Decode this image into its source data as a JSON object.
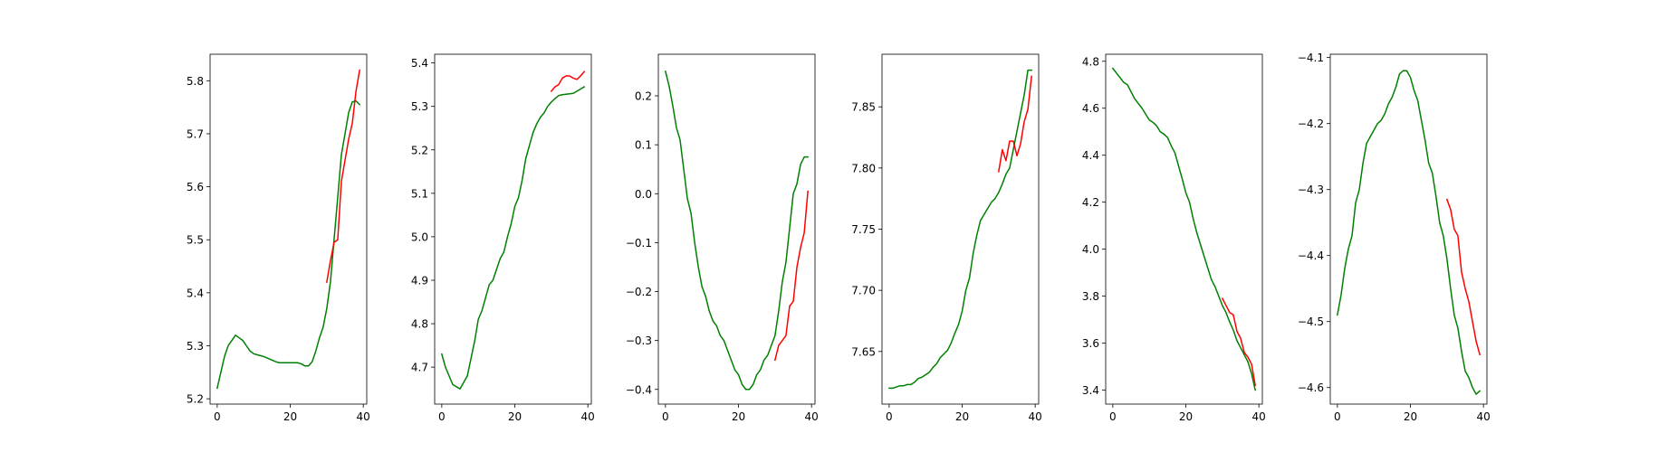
{
  "colors": {
    "green_series": "#008000",
    "red_series": "#ff0000",
    "axes": "#000000",
    "background": "#ffffff"
  },
  "chart_data": [
    {
      "type": "line",
      "xlim": [
        -1.95,
        40.95
      ],
      "ylim": [
        5.19,
        5.85
      ],
      "xticks": [
        0,
        20,
        40
      ],
      "xtick_labels": [
        "0",
        "20",
        "40"
      ],
      "yticks": [
        5.2,
        5.3,
        5.4,
        5.5,
        5.6,
        5.7,
        5.8
      ],
      "ytick_labels": [
        "5.2",
        "5.3",
        "5.4",
        "5.5",
        "5.6",
        "5.7",
        "5.8"
      ],
      "series": [
        {
          "color": "green",
          "x": [
            0,
            1,
            2,
            3,
            4,
            5,
            6,
            7,
            8,
            9,
            10,
            11,
            12,
            13,
            14,
            15,
            16,
            17,
            18,
            19,
            20,
            21,
            22,
            23,
            24,
            25,
            26,
            27,
            28,
            29,
            30,
            31,
            32,
            33,
            34,
            35,
            36,
            37,
            38,
            39
          ],
          "y": [
            5.22,
            5.25,
            5.28,
            5.3,
            5.31,
            5.32,
            5.315,
            5.31,
            5.3,
            5.29,
            5.285,
            5.283,
            5.281,
            5.279,
            5.276,
            5.273,
            5.27,
            5.268,
            5.268,
            5.268,
            5.268,
            5.268,
            5.268,
            5.266,
            5.262,
            5.262,
            5.27,
            5.29,
            5.315,
            5.335,
            5.37,
            5.42,
            5.5,
            5.58,
            5.66,
            5.7,
            5.74,
            5.76,
            5.762,
            5.755
          ]
        },
        {
          "color": "red",
          "x": [
            30,
            31,
            32,
            33,
            34,
            35,
            36,
            37,
            38,
            39
          ],
          "y": [
            5.42,
            5.46,
            5.495,
            5.5,
            5.61,
            5.65,
            5.69,
            5.72,
            5.78,
            5.82
          ]
        }
      ]
    },
    {
      "type": "line",
      "xlim": [
        -1.95,
        40.95
      ],
      "ylim": [
        4.615,
        5.42
      ],
      "xticks": [
        0,
        20,
        40
      ],
      "xtick_labels": [
        "0",
        "20",
        "40"
      ],
      "yticks": [
        4.7,
        4.8,
        4.9,
        5.0,
        5.1,
        5.2,
        5.3,
        5.4
      ],
      "ytick_labels": [
        "4.7",
        "4.8",
        "4.9",
        "5.0",
        "5.1",
        "5.2",
        "5.3",
        "5.4"
      ],
      "series": [
        {
          "color": "green",
          "x": [
            0,
            1,
            2,
            3,
            4,
            5,
            6,
            7,
            8,
            9,
            10,
            11,
            12,
            13,
            14,
            15,
            16,
            17,
            18,
            19,
            20,
            21,
            22,
            23,
            24,
            25,
            26,
            27,
            28,
            29,
            30,
            31,
            32,
            33,
            34,
            35,
            36,
            37,
            38,
            39
          ],
          "y": [
            4.73,
            4.7,
            4.68,
            4.66,
            4.655,
            4.65,
            4.665,
            4.68,
            4.72,
            4.76,
            4.81,
            4.83,
            4.86,
            4.89,
            4.9,
            4.925,
            4.95,
            4.965,
            5.0,
            5.03,
            5.07,
            5.09,
            5.13,
            5.18,
            5.21,
            5.24,
            5.26,
            5.275,
            5.285,
            5.3,
            5.31,
            5.318,
            5.325,
            5.327,
            5.328,
            5.329,
            5.33,
            5.335,
            5.34,
            5.345
          ]
        },
        {
          "color": "red",
          "x": [
            30,
            31,
            32,
            33,
            34,
            35,
            36,
            37,
            38,
            39
          ],
          "y": [
            5.335,
            5.345,
            5.35,
            5.365,
            5.37,
            5.37,
            5.365,
            5.362,
            5.37,
            5.38
          ]
        }
      ]
    },
    {
      "type": "line",
      "xlim": [
        -1.95,
        40.95
      ],
      "ylim": [
        -0.43,
        0.285
      ],
      "xticks": [
        0,
        20,
        40
      ],
      "xtick_labels": [
        "0",
        "20",
        "40"
      ],
      "yticks": [
        -0.4,
        -0.3,
        -0.2,
        -0.1,
        0.0,
        0.1,
        0.2
      ],
      "ytick_labels": [
        "−0.4",
        "−0.3",
        "−0.2",
        "−0.1",
        "0.0",
        "0.1",
        "0.2"
      ],
      "series": [
        {
          "color": "green",
          "x": [
            0,
            1,
            2,
            3,
            4,
            5,
            6,
            7,
            8,
            9,
            10,
            11,
            12,
            13,
            14,
            15,
            16,
            17,
            18,
            19,
            20,
            21,
            22,
            23,
            24,
            25,
            26,
            27,
            28,
            29,
            30,
            31,
            32,
            33,
            34,
            35,
            36,
            37,
            38,
            39
          ],
          "y": [
            0.25,
            0.22,
            0.18,
            0.135,
            0.11,
            0.05,
            -0.01,
            -0.04,
            -0.1,
            -0.15,
            -0.19,
            -0.21,
            -0.24,
            -0.26,
            -0.27,
            -0.29,
            -0.3,
            -0.32,
            -0.34,
            -0.36,
            -0.37,
            -0.39,
            -0.4,
            -0.4,
            -0.39,
            -0.37,
            -0.36,
            -0.34,
            -0.33,
            -0.31,
            -0.29,
            -0.24,
            -0.18,
            -0.14,
            -0.07,
            0.0,
            0.02,
            0.06,
            0.075,
            0.075
          ]
        },
        {
          "color": "red",
          "x": [
            30,
            31,
            32,
            33,
            34,
            35,
            36,
            37,
            38,
            39
          ],
          "y": [
            -0.34,
            -0.31,
            -0.3,
            -0.29,
            -0.23,
            -0.22,
            -0.15,
            -0.11,
            -0.08,
            0.005
          ]
        }
      ]
    },
    {
      "type": "line",
      "xlim": [
        -1.95,
        40.95
      ],
      "ylim": [
        7.607,
        7.893
      ],
      "xticks": [
        0,
        20,
        40
      ],
      "xtick_labels": [
        "0",
        "20",
        "40"
      ],
      "yticks": [
        7.65,
        7.7,
        7.75,
        7.8,
        7.85
      ],
      "ytick_labels": [
        "7.65",
        "7.70",
        "7.75",
        "7.80",
        "7.85"
      ],
      "series": [
        {
          "color": "green",
          "x": [
            0,
            1,
            2,
            3,
            4,
            5,
            6,
            7,
            8,
            9,
            10,
            11,
            12,
            13,
            14,
            15,
            16,
            17,
            18,
            19,
            20,
            21,
            22,
            23,
            24,
            25,
            26,
            27,
            28,
            29,
            30,
            31,
            32,
            33,
            34,
            35,
            36,
            37,
            38,
            39
          ],
          "y": [
            7.62,
            7.62,
            7.621,
            7.622,
            7.622,
            7.623,
            7.623,
            7.625,
            7.628,
            7.629,
            7.631,
            7.633,
            7.637,
            7.64,
            7.645,
            7.648,
            7.651,
            7.657,
            7.665,
            7.672,
            7.683,
            7.7,
            7.71,
            7.73,
            7.745,
            7.757,
            7.762,
            7.767,
            7.772,
            7.775,
            7.78,
            7.787,
            7.795,
            7.8,
            7.815,
            7.83,
            7.845,
            7.86,
            7.88,
            7.88
          ]
        },
        {
          "color": "red",
          "x": [
            30,
            31,
            32,
            33,
            34,
            35,
            36,
            37,
            38,
            39
          ],
          "y": [
            7.797,
            7.815,
            7.806,
            7.822,
            7.822,
            7.81,
            7.82,
            7.838,
            7.848,
            7.875
          ]
        }
      ]
    },
    {
      "type": "line",
      "xlim": [
        -1.95,
        40.95
      ],
      "ylim": [
        3.34,
        4.83
      ],
      "xticks": [
        0,
        20,
        40
      ],
      "xtick_labels": [
        "0",
        "20",
        "40"
      ],
      "yticks": [
        3.4,
        3.6,
        3.8,
        4.0,
        4.2,
        4.4,
        4.6,
        4.8
      ],
      "ytick_labels": [
        "3.4",
        "3.6",
        "3.8",
        "4.0",
        "4.2",
        "4.4",
        "4.6",
        "4.8"
      ],
      "series": [
        {
          "color": "green",
          "x": [
            0,
            1,
            2,
            3,
            4,
            5,
            6,
            7,
            8,
            9,
            10,
            11,
            12,
            13,
            14,
            15,
            16,
            17,
            18,
            19,
            20,
            21,
            22,
            23,
            24,
            25,
            26,
            27,
            28,
            29,
            30,
            31,
            32,
            33,
            34,
            35,
            36,
            37,
            38,
            39
          ],
          "y": [
            4.77,
            4.75,
            4.73,
            4.71,
            4.7,
            4.67,
            4.64,
            4.62,
            4.6,
            4.575,
            4.55,
            4.54,
            4.525,
            4.5,
            4.49,
            4.475,
            4.44,
            4.41,
            4.355,
            4.3,
            4.24,
            4.2,
            4.13,
            4.07,
            4.02,
            3.97,
            3.92,
            3.87,
            3.84,
            3.8,
            3.76,
            3.73,
            3.69,
            3.655,
            3.61,
            3.58,
            3.55,
            3.52,
            3.47,
            3.4
          ]
        },
        {
          "color": "red",
          "x": [
            30,
            31,
            32,
            33,
            34,
            35,
            36,
            37,
            38,
            39
          ],
          "y": [
            3.79,
            3.76,
            3.73,
            3.72,
            3.65,
            3.62,
            3.56,
            3.54,
            3.51,
            3.42
          ]
        }
      ]
    },
    {
      "type": "line",
      "xlim": [
        -1.95,
        40.95
      ],
      "ylim": [
        -4.625,
        -4.095
      ],
      "xticks": [
        0,
        20,
        40
      ],
      "xtick_labels": [
        "0",
        "20",
        "40"
      ],
      "yticks": [
        -4.6,
        -4.5,
        -4.4,
        -4.3,
        -4.2,
        -4.1
      ],
      "ytick_labels": [
        "−4.6",
        "−4.5",
        "−4.4",
        "−4.3",
        "−4.2",
        "−4.1"
      ],
      "series": [
        {
          "color": "green",
          "x": [
            0,
            1,
            2,
            3,
            4,
            5,
            6,
            7,
            8,
            9,
            10,
            11,
            12,
            13,
            14,
            15,
            16,
            17,
            18,
            19,
            20,
            21,
            22,
            23,
            24,
            25,
            26,
            27,
            28,
            29,
            30,
            31,
            32,
            33,
            34,
            35,
            36,
            37,
            38,
            39
          ],
          "y": [
            -4.49,
            -4.46,
            -4.42,
            -4.39,
            -4.37,
            -4.32,
            -4.3,
            -4.26,
            -4.23,
            -4.22,
            -4.21,
            -4.2,
            -4.195,
            -4.185,
            -4.17,
            -4.16,
            -4.145,
            -4.125,
            -4.12,
            -4.12,
            -4.13,
            -4.15,
            -4.165,
            -4.195,
            -4.225,
            -4.26,
            -4.275,
            -4.31,
            -4.35,
            -4.37,
            -4.405,
            -4.45,
            -4.49,
            -4.51,
            -4.545,
            -4.575,
            -4.585,
            -4.6,
            -4.61,
            -4.605
          ]
        },
        {
          "color": "red",
          "x": [
            30,
            31,
            32,
            33,
            34,
            35,
            36,
            37,
            38,
            39
          ],
          "y": [
            -4.315,
            -4.33,
            -4.36,
            -4.37,
            -4.425,
            -4.45,
            -4.47,
            -4.5,
            -4.53,
            -4.55
          ]
        }
      ]
    }
  ]
}
